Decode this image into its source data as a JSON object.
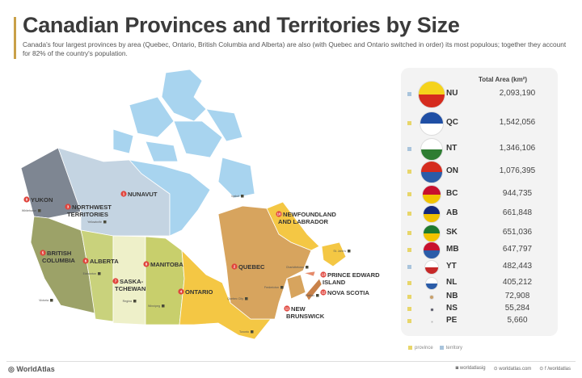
{
  "header": {
    "title": "Canadian Provinces and Territories by Size",
    "subtitle": "Canada's four largest provinces by area (Quebec, Ontario, British Columbia and Alberta) are also (with Quebec and Ontario switched in order) its most populous; together they account for 82% of the country's population."
  },
  "colors": {
    "accent": "#c9a048",
    "province": "#e8d66a",
    "territory": "#a9c4dc",
    "marker": "#e0443c"
  },
  "map": {
    "regions": [
      {
        "rank": "1",
        "name": "NUNAVUT",
        "capital": "Iqaluit"
      },
      {
        "rank": "2",
        "name": "QUEBEC",
        "capital": "Quebec City"
      },
      {
        "rank": "3",
        "name": "NORTHWEST TERRITORIES",
        "capital": "Yellowknife"
      },
      {
        "rank": "4",
        "name": "ONTARIO",
        "capital": "Toronto"
      },
      {
        "rank": "5",
        "name": "BRITISH COLUMBIA",
        "capital": "Victoria"
      },
      {
        "rank": "6",
        "name": "ALBERTA",
        "capital": "Edmonton"
      },
      {
        "rank": "7",
        "name": "SASKA-TCHEWAN",
        "capital": "Regina"
      },
      {
        "rank": "8",
        "name": "MANITOBA",
        "capital": "Winnipeg"
      },
      {
        "rank": "9",
        "name": "YUKON",
        "capital": "Whitehorse"
      },
      {
        "rank": "10",
        "name": "NEWFOUNDLAND AND LABRADOR",
        "capital": "St. John's"
      },
      {
        "rank": "11",
        "name": "NEW BRUNSWICK",
        "capital": "Fredericton"
      },
      {
        "rank": "12",
        "name": "NOVA SCOTIA",
        "capital": "Halifax"
      },
      {
        "rank": "13",
        "name": "PRINCE EDWARD ISLAND",
        "capital": "Charlottetown"
      }
    ]
  },
  "table": {
    "header": "Total Area (km²)",
    "rows": [
      {
        "code": "NU",
        "area": "2,093,190",
        "type": "territory",
        "flag": "nunavut-flag-icon"
      },
      {
        "code": "QC",
        "area": "1,542,056",
        "type": "province",
        "flag": "quebec-flag-icon"
      },
      {
        "code": "NT",
        "area": "1,346,106",
        "type": "territory",
        "flag": "nwt-flag-icon"
      },
      {
        "code": "ON",
        "area": "1,076,395",
        "type": "province",
        "flag": "ontario-flag-icon"
      },
      {
        "code": "BC",
        "area": "944,735",
        "type": "province",
        "flag": "bc-flag-icon"
      },
      {
        "code": "AB",
        "area": "661,848",
        "type": "province",
        "flag": "alberta-flag-icon"
      },
      {
        "code": "SK",
        "area": "651,036",
        "type": "province",
        "flag": "saskatchewan-flag-icon"
      },
      {
        "code": "MB",
        "area": "647,797",
        "type": "province",
        "flag": "manitoba-flag-icon"
      },
      {
        "code": "YT",
        "area": "482,443",
        "type": "territory",
        "flag": "yukon-flag-icon"
      },
      {
        "code": "NL",
        "area": "405,212",
        "type": "province",
        "flag": "newfoundland-flag-icon"
      },
      {
        "code": "NB",
        "area": "72,908",
        "type": "province",
        "flag": "new-brunswick-flag-icon"
      },
      {
        "code": "NS",
        "area": "55,284",
        "type": "province",
        "flag": "nova-scotia-flag-icon"
      },
      {
        "code": "PE",
        "area": "5,660",
        "type": "province",
        "flag": "pei-flag-icon"
      }
    ]
  },
  "legend": {
    "province": "province",
    "territory": "territory"
  },
  "footer": {
    "brand": "WorldAtlas",
    "instagram": "worldatlasig",
    "website": "worldatlas.com",
    "facebook": "/worldatlas"
  }
}
